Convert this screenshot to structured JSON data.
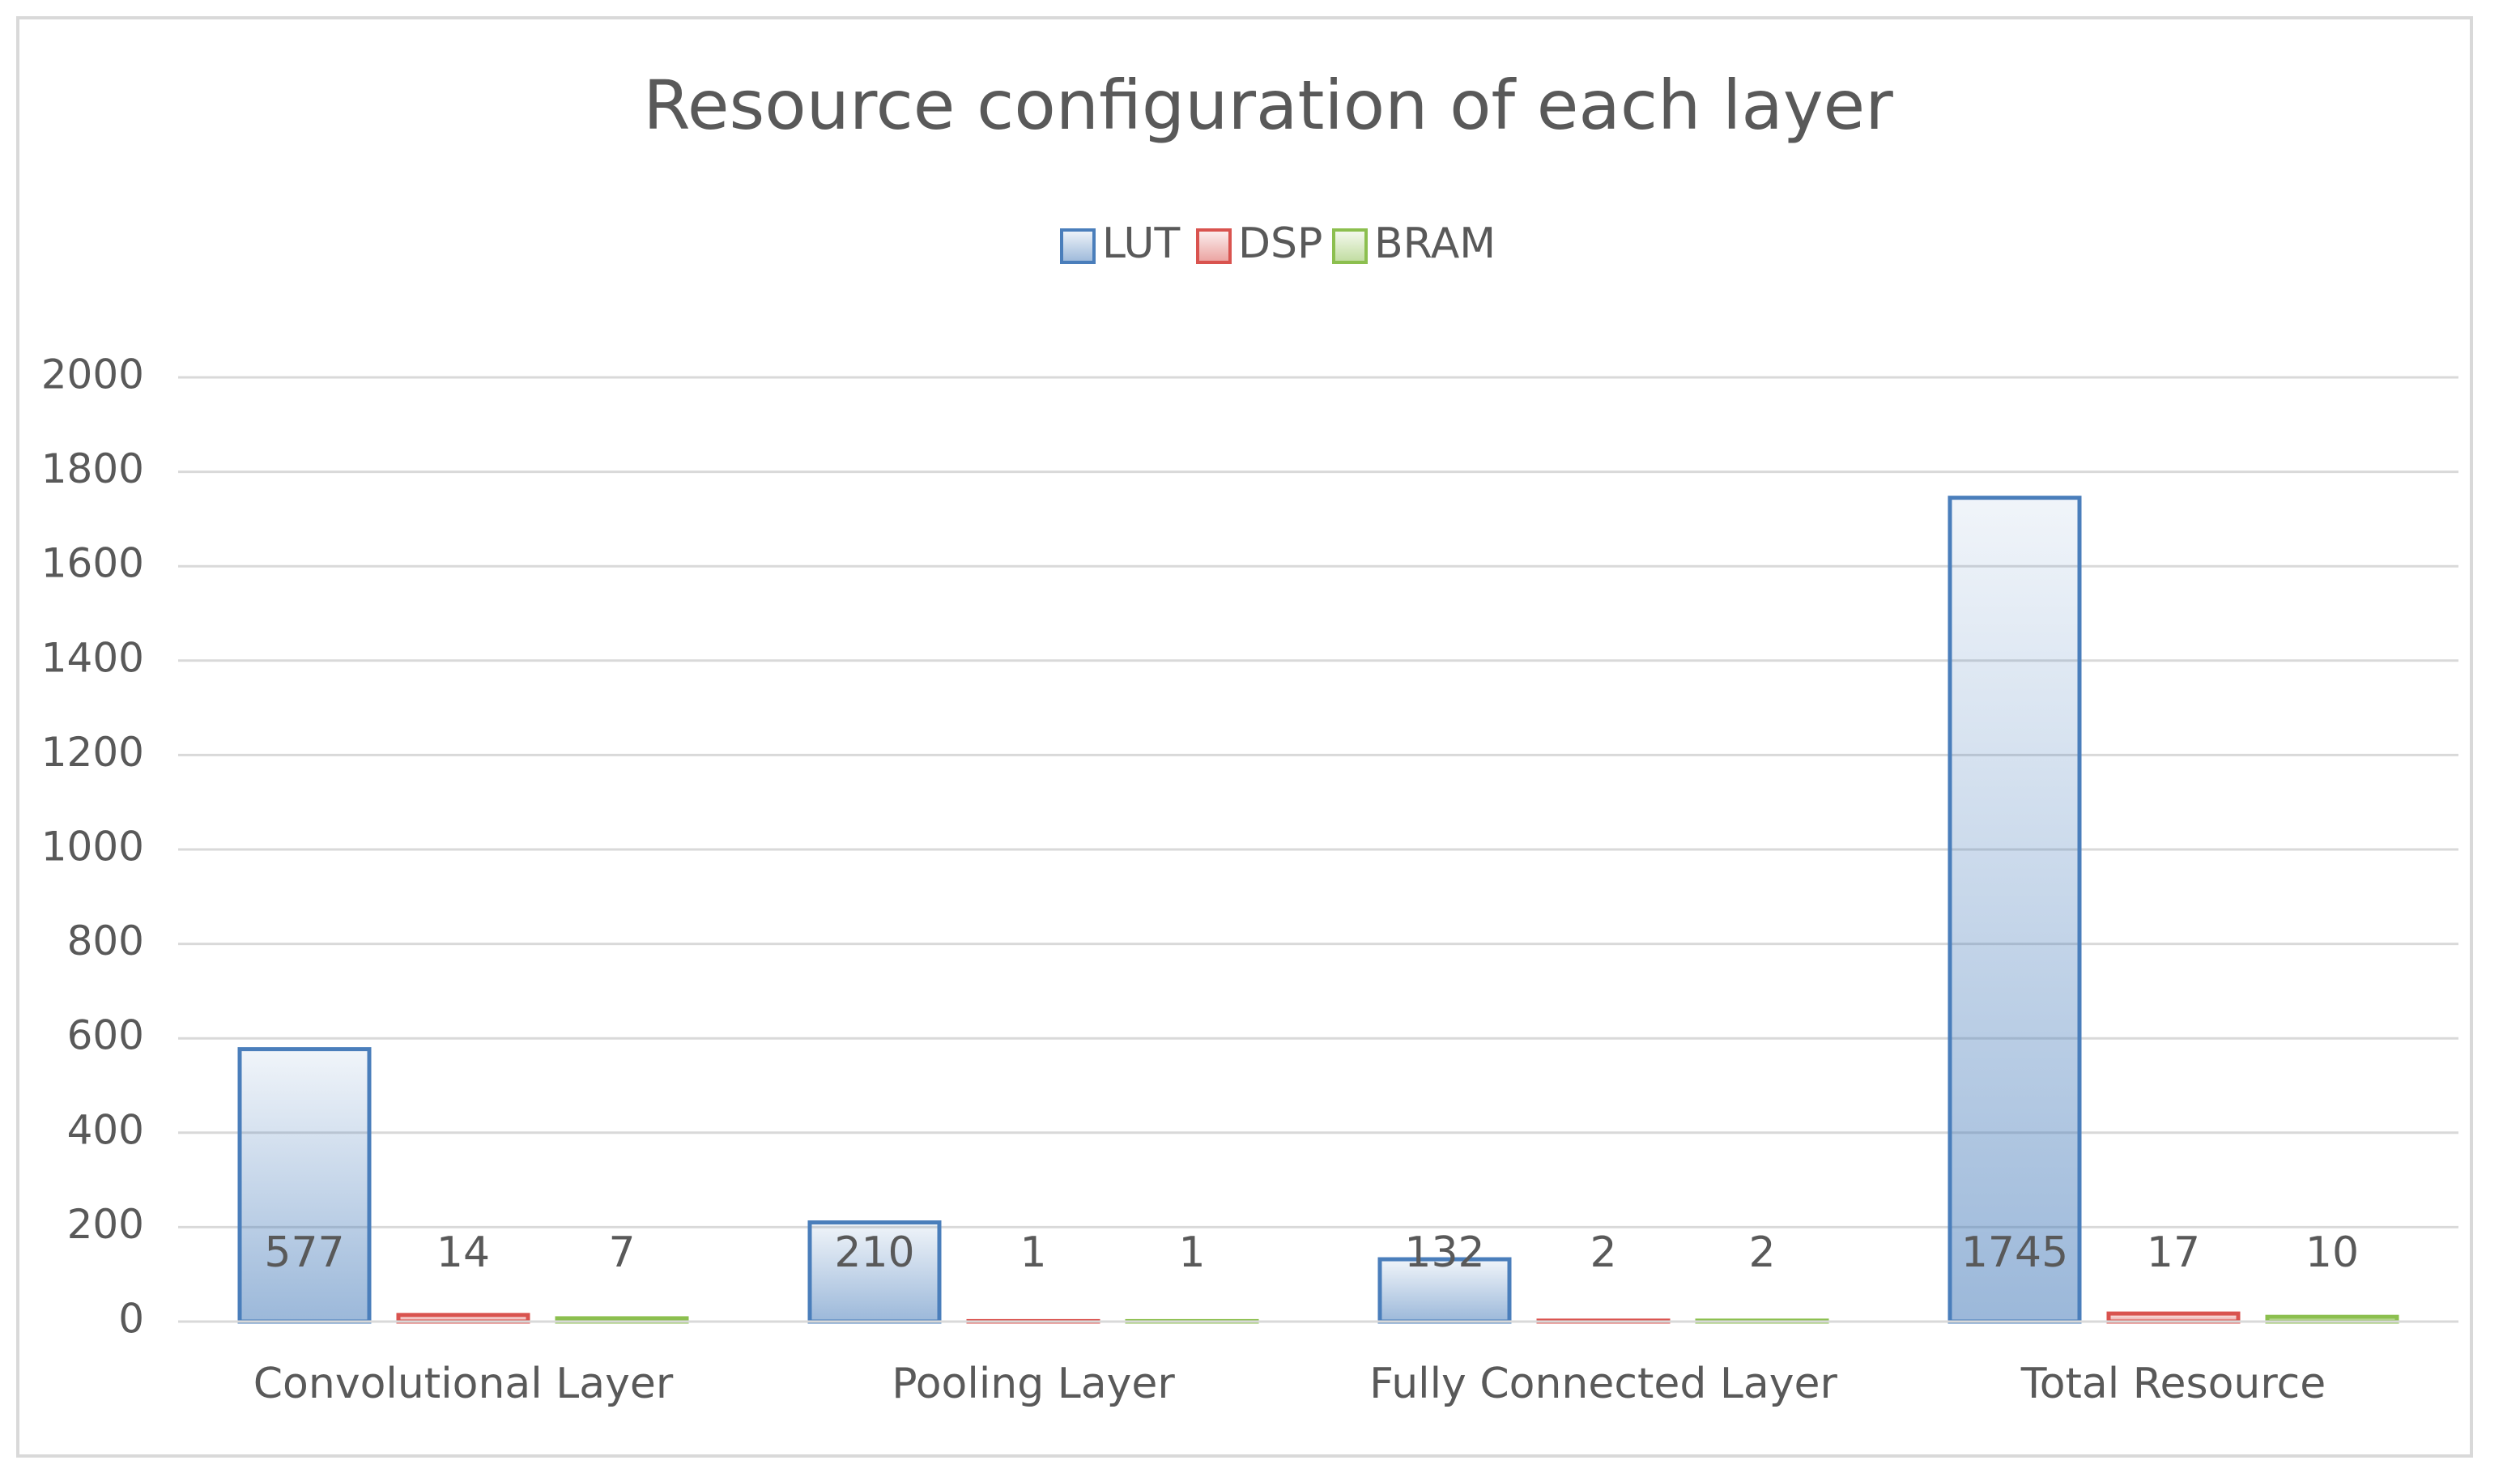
{
  "chart_data": {
    "type": "bar",
    "title": "Resource configuration of each layer",
    "categories": [
      "Convolutional Layer",
      "Pooling Layer",
      "Fully Connected Layer",
      "Total Resource"
    ],
    "series": [
      {
        "name": "LUT",
        "color": "#4a7ebb",
        "values": [
          577,
          210,
          132,
          1745
        ]
      },
      {
        "name": "DSP",
        "color": "#d9534f",
        "values": [
          14,
          1,
          2,
          17
        ]
      },
      {
        "name": "BRAM",
        "color": "#8cbf4f",
        "values": [
          7,
          1,
          2,
          10
        ]
      }
    ],
    "ylim": [
      0,
      2000
    ],
    "yticks": [
      0,
      200,
      400,
      600,
      800,
      1000,
      1200,
      1400,
      1600,
      1800,
      2000
    ],
    "grid": true,
    "legend": "top"
  }
}
